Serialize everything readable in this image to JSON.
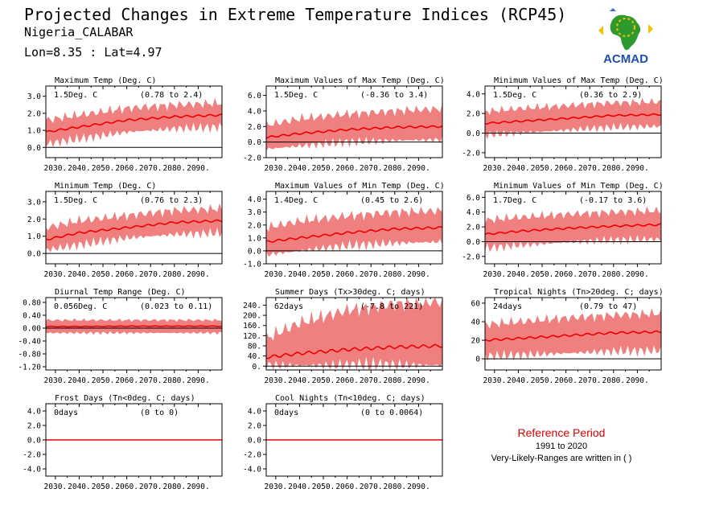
{
  "header": {
    "title": "Projected Changes in Extreme Temperature Indices (RCP45)",
    "subtitle": "Nigeria_CALABAR",
    "coords": "Lon=8.35 : Lat=4.97"
  },
  "logo": {
    "text": "ACMAD",
    "icon": "africa-map-logo-icon"
  },
  "colors": {
    "band": "#f08080",
    "line": "#ee0000",
    "zero": "#000000",
    "reference": "#e30000"
  },
  "note": {
    "title": "Reference Period",
    "period": "1991 to 2020",
    "text": "Very-Likely-Ranges are written in ( )"
  },
  "chart_data": [
    {
      "type": "line",
      "title": "Maximum Temp (Deg. C)",
      "summary": "1.5Deg. C",
      "range_text": "(0.78 to 2.4)",
      "xticks": [
        "2030.",
        "2040.",
        "2050.",
        "2060.",
        "2070.",
        "2080.",
        "2090."
      ],
      "xlim": [
        2026,
        2100
      ],
      "ylim": [
        -0.6,
        3.6
      ],
      "yticks": [
        "0.0",
        "1.0",
        "2.0",
        "3.0"
      ],
      "ytick_values": [
        0,
        1,
        2,
        3
      ],
      "x": [
        2026,
        2040,
        2060,
        2080,
        2100
      ],
      "median": [
        0.9,
        1.2,
        1.6,
        1.8,
        1.9
      ],
      "lower": [
        0.2,
        0.5,
        0.9,
        1.1,
        1.2
      ],
      "upper": [
        1.6,
        1.9,
        2.3,
        2.5,
        2.6
      ]
    },
    {
      "type": "line",
      "title": "Maximum Values of Max Temp (Deg. C)",
      "summary": "1.5Deg. C",
      "range_text": "(-0.36 to 3.4)",
      "xticks": [
        "2030.",
        "2040.",
        "2050.",
        "2060.",
        "2070.",
        "2080.",
        "2090."
      ],
      "xlim": [
        2026,
        2100
      ],
      "ylim": [
        -2.0,
        7.2
      ],
      "yticks": [
        "-2.0",
        "0.0",
        "2.0",
        "4.0",
        "6.0"
      ],
      "ytick_values": [
        -2,
        0,
        2,
        4,
        6
      ],
      "x": [
        2026,
        2040,
        2060,
        2080,
        2100
      ],
      "median": [
        0.6,
        1.1,
        1.6,
        1.9,
        2.0
      ],
      "lower": [
        -0.9,
        -0.5,
        0.0,
        0.2,
        0.3
      ],
      "upper": [
        2.2,
        3.0,
        3.6,
        4.0,
        4.3
      ]
    },
    {
      "type": "line",
      "title": "Minimum Values of Max Temp (Deg. C)",
      "summary": "1.5Deg. C",
      "range_text": "(0.36 to 2.9)",
      "xticks": [
        "2030.",
        "2040.",
        "2050.",
        "2060.",
        "2070.",
        "2080.",
        "2090."
      ],
      "xlim": [
        2026,
        2100
      ],
      "ylim": [
        -2.5,
        4.8
      ],
      "yticks": [
        "-2.0",
        "0.0",
        "2.0",
        "4.0"
      ],
      "ytick_values": [
        -2,
        0,
        2,
        4
      ],
      "x": [
        2026,
        2040,
        2060,
        2080,
        2100
      ],
      "median": [
        1.0,
        1.2,
        1.5,
        1.8,
        1.9
      ],
      "lower": [
        -0.2,
        0.0,
        0.3,
        0.6,
        0.7
      ],
      "upper": [
        2.2,
        2.5,
        2.8,
        3.1,
        3.2
      ]
    },
    {
      "type": "line",
      "title": "Minimum Temp (Deg. C)",
      "summary": "1.5Deg. C",
      "range_text": "(0.76 to 2.3)",
      "xticks": [
        "2030.",
        "2040.",
        "2050.",
        "2060.",
        "2070.",
        "2080.",
        "2090."
      ],
      "xlim": [
        2026,
        2100
      ],
      "ylim": [
        -0.6,
        3.6
      ],
      "yticks": [
        "0.0",
        "1.0",
        "2.0",
        "3.0"
      ],
      "ytick_values": [
        0,
        1,
        2,
        3
      ],
      "x": [
        2026,
        2040,
        2060,
        2080,
        2100
      ],
      "median": [
        0.8,
        1.2,
        1.5,
        1.8,
        1.9
      ],
      "lower": [
        0.2,
        0.5,
        0.9,
        1.1,
        1.2
      ],
      "upper": [
        1.5,
        1.9,
        2.2,
        2.5,
        2.6
      ]
    },
    {
      "type": "line",
      "title": "Maximum Values of Min Temp (Deg. C)",
      "summary": "1.4Deg. C",
      "range_text": "(0.45 to 2.6)",
      "xticks": [
        "2030.",
        "2040.",
        "2050.",
        "2060.",
        "2070.",
        "2080.",
        "2090."
      ],
      "xlim": [
        2026,
        2100
      ],
      "ylim": [
        -1.0,
        4.6
      ],
      "yticks": [
        "-1.0",
        "0.0",
        "1.0",
        "2.0",
        "3.0",
        "4.0"
      ],
      "ytick_values": [
        -1,
        0,
        1,
        2,
        3,
        4
      ],
      "x": [
        2026,
        2040,
        2060,
        2080,
        2100
      ],
      "median": [
        0.7,
        1.0,
        1.4,
        1.7,
        1.8
      ],
      "lower": [
        -0.3,
        0.0,
        0.4,
        0.6,
        0.7
      ],
      "upper": [
        1.8,
        2.3,
        2.7,
        3.0,
        3.1
      ]
    },
    {
      "type": "line",
      "title": "Minimum Values of Min Temp (Deg. C)",
      "summary": "1.7Deg. C",
      "range_text": "(-0.17 to 3.6)",
      "xticks": [
        "2030.",
        "2040.",
        "2050.",
        "2060.",
        "2070.",
        "2080.",
        "2090."
      ],
      "xlim": [
        2026,
        2100
      ],
      "ylim": [
        -3.0,
        6.8
      ],
      "yticks": [
        "-2.0",
        "0.0",
        "2.0",
        "4.0",
        "6.0"
      ],
      "ytick_values": [
        -2,
        0,
        2,
        4,
        6
      ],
      "x": [
        2026,
        2040,
        2060,
        2080,
        2100
      ],
      "median": [
        1.0,
        1.4,
        1.8,
        2.1,
        2.3
      ],
      "lower": [
        -0.9,
        -0.5,
        -0.1,
        0.2,
        0.3
      ],
      "upper": [
        2.9,
        3.3,
        3.7,
        4.0,
        4.2
      ]
    },
    {
      "type": "line",
      "title": "Diurnal Temp Range (Deg. C)",
      "summary": "0.056Deg. C",
      "range_text": "(0.023 to 0.11)",
      "xticks": [
        "2030.",
        "2040.",
        "2050.",
        "2060.",
        "2070.",
        "2080.",
        "2090."
      ],
      "xlim": [
        2026,
        2100
      ],
      "ylim": [
        -1.3,
        0.95
      ],
      "yticks": [
        "-1.20",
        "-0.80",
        "-0.40",
        "0.00",
        "0.40",
        "0.80"
      ],
      "ytick_values": [
        -1.2,
        -0.8,
        -0.4,
        0,
        0.4,
        0.8
      ],
      "x": [
        2026,
        2040,
        2060,
        2080,
        2100
      ],
      "median": [
        0.05,
        0.05,
        0.06,
        0.06,
        0.06
      ],
      "lower": [
        -0.15,
        -0.15,
        -0.15,
        -0.15,
        -0.15
      ],
      "upper": [
        0.25,
        0.25,
        0.25,
        0.25,
        0.25
      ]
    },
    {
      "type": "line",
      "title": "Summer Days (Tx>30deg. C; days)",
      "summary": "62days",
      "range_text": "(-7.8 to 221)",
      "xticks": [
        "2030.",
        "2040.",
        "2050.",
        "2060.",
        "2070.",
        "2080.",
        "2090."
      ],
      "xlim": [
        2026,
        2100
      ],
      "ylim": [
        -15,
        270
      ],
      "yticks": [
        "0.",
        "40.",
        "80.",
        "120.",
        "160.",
        "200.",
        "240."
      ],
      "ytick_values": [
        0,
        40,
        80,
        120,
        160,
        200,
        240
      ],
      "x": [
        2026,
        2040,
        2060,
        2080,
        2100
      ],
      "median": [
        35,
        50,
        65,
        75,
        80
      ],
      "lower": [
        2,
        3,
        3,
        4,
        4
      ],
      "upper": [
        110,
        170,
        220,
        245,
        255
      ]
    },
    {
      "type": "line",
      "title": "Tropical Nights (Tn>20deg. C; days)",
      "summary": "24days",
      "range_text": "(0.79 to 47)",
      "xticks": [
        "2030.",
        "2040.",
        "2050.",
        "2060.",
        "2070.",
        "2080.",
        "2090."
      ],
      "xlim": [
        2026,
        2100
      ],
      "ylim": [
        -12,
        66
      ],
      "yticks": [
        "0",
        "20",
        "40",
        "60"
      ],
      "ytick_values": [
        0,
        20,
        40,
        60
      ],
      "x": [
        2026,
        2040,
        2060,
        2080,
        2100
      ],
      "median": [
        20,
        22,
        25,
        28,
        29
      ],
      "lower": [
        3,
        4,
        6,
        8,
        9
      ],
      "upper": [
        37,
        40,
        44,
        47,
        49
      ]
    },
    {
      "type": "line",
      "title": "Frost Days (Tn<0deg. C; days)",
      "summary": "0days",
      "range_text": "(0 to 0)",
      "xticks": [
        "2030.",
        "2040.",
        "2050.",
        "2060.",
        "2070.",
        "2080.",
        "2090."
      ],
      "xlim": [
        2026,
        2100
      ],
      "ylim": [
        -5,
        5
      ],
      "yticks": [
        "-4.0",
        "-2.0",
        "0.0",
        "2.0",
        "4.0"
      ],
      "ytick_values": [
        -4,
        -2,
        0,
        2,
        4
      ],
      "x": [
        2026,
        2100
      ],
      "median": [
        0,
        0
      ],
      "lower": [
        0,
        0
      ],
      "upper": [
        0,
        0
      ]
    },
    {
      "type": "line",
      "title": "Cool Nights (Tn<10deg. C; days)",
      "summary": "0days",
      "range_text": "(0 to 0.0064)",
      "xticks": [
        "2030.",
        "2040.",
        "2050.",
        "2060.",
        "2070.",
        "2080.",
        "2090."
      ],
      "xlim": [
        2026,
        2100
      ],
      "ylim": [
        -5,
        5
      ],
      "yticks": [
        "-4.0",
        "-2.0",
        "0.0",
        "2.0",
        "4.0"
      ],
      "ytick_values": [
        -4,
        -2,
        0,
        2,
        4
      ],
      "x": [
        2026,
        2100
      ],
      "median": [
        0,
        0
      ],
      "lower": [
        0,
        0
      ],
      "upper": [
        0,
        0
      ]
    }
  ]
}
